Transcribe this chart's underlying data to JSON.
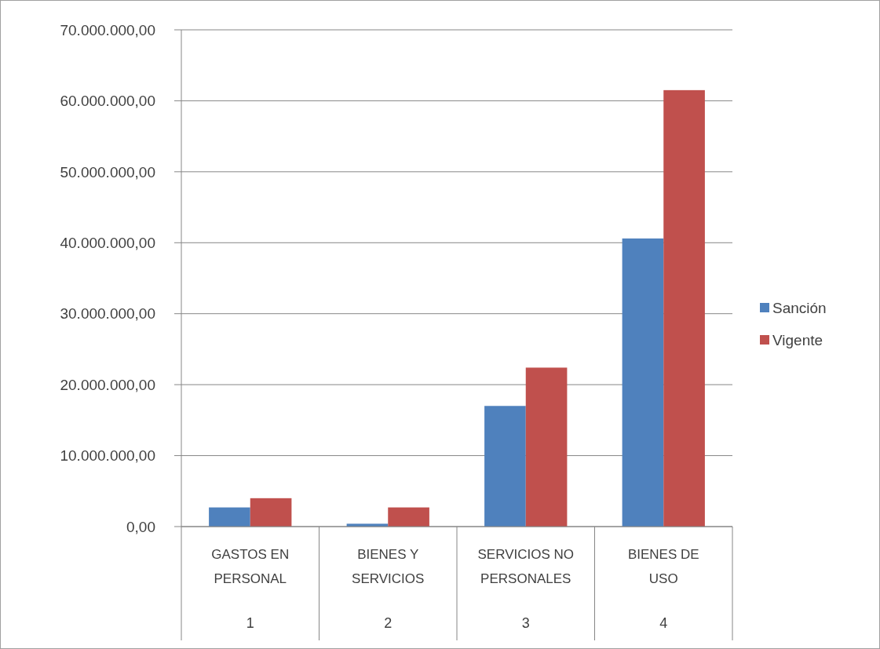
{
  "chart_data": {
    "type": "bar",
    "categories": [
      "GASTOS EN PERSONAL",
      "BIENES Y SERVICIOS",
      "SERVICIOS NO PERSONALES",
      "BIENES DE USO"
    ],
    "series": [
      {
        "name": "Sanción",
        "color": "#4f81bd",
        "values": [
          2700000,
          400000,
          17000000,
          40600000
        ]
      },
      {
        "name": "Vigente",
        "color": "#c0504d",
        "values": [
          4000000,
          2700000,
          22400000,
          61500000
        ]
      }
    ],
    "ylim": [
      0,
      70000000
    ],
    "yticks": [
      {
        "value": 0,
        "label": "0,00"
      },
      {
        "value": 10000000,
        "label": "10.000.000,00"
      },
      {
        "value": 20000000,
        "label": "20.000.000,00"
      },
      {
        "value": 30000000,
        "label": "30.000.000,00"
      },
      {
        "value": 40000000,
        "label": "40.000.000,00"
      },
      {
        "value": 50000000,
        "label": "50.000.000,00"
      },
      {
        "value": 60000000,
        "label": "60.000.000,00"
      },
      {
        "value": 70000000,
        "label": "70.000.000,00"
      }
    ],
    "grid": "y",
    "legend": "right",
    "annotations": [
      "1",
      "2",
      "3",
      "4"
    ]
  }
}
